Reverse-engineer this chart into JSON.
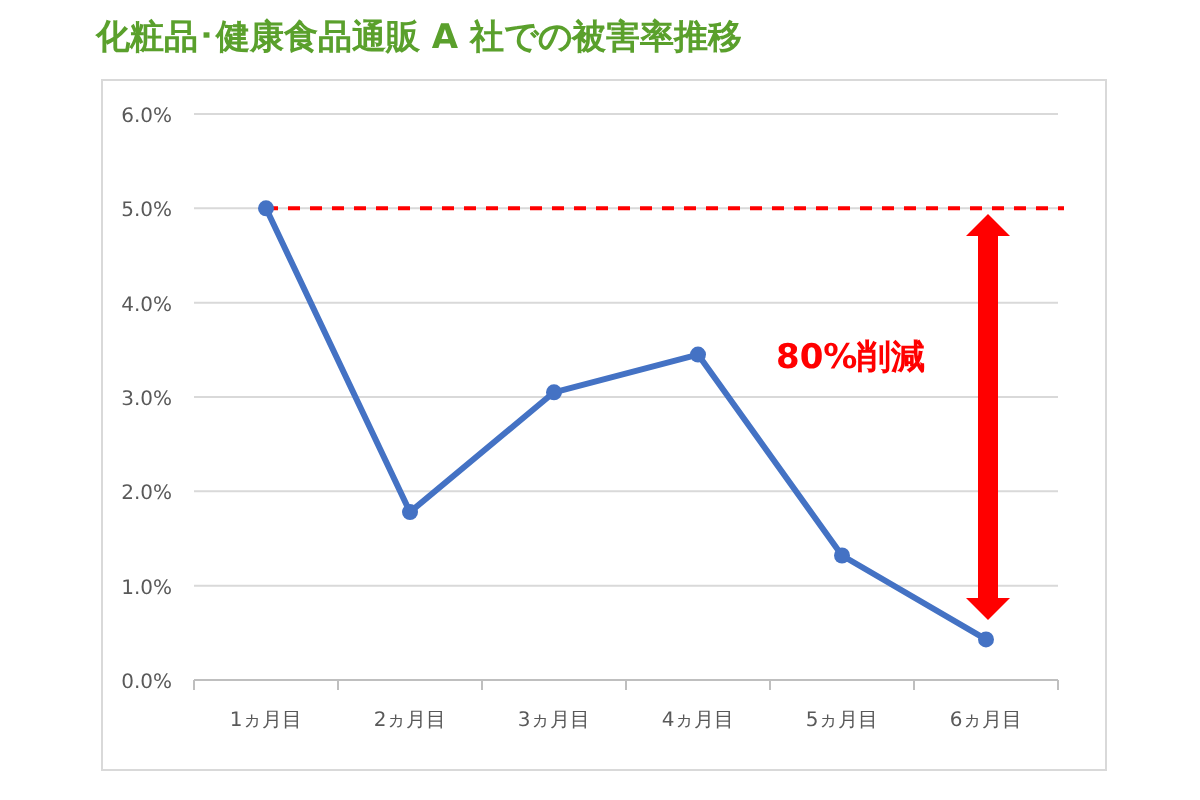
{
  "chart_data": {
    "type": "line",
    "title": "化粧品･健康食品通販 A 社での被害率推移",
    "categories": [
      "1ヵ月目",
      "2ヵ月目",
      "3ヵ月目",
      "4ヵ月目",
      "5ヵ月目",
      "6ヵ月目"
    ],
    "series": [
      {
        "color": "#4472c4",
        "values": [
          5.0,
          1.78,
          3.05,
          3.45,
          1.32,
          0.43
        ]
      }
    ],
    "ylim": [
      0,
      6
    ],
    "yticks": [
      {
        "value": 0,
        "label": "0.0%"
      },
      {
        "value": 1,
        "label": "1.0%"
      },
      {
        "value": 2,
        "label": "2.0%"
      },
      {
        "value": 3,
        "label": "3.0%"
      },
      {
        "value": 4,
        "label": "4.0%"
      },
      {
        "value": 5,
        "label": "5.0%"
      },
      {
        "value": 6,
        "label": "6.0%"
      }
    ],
    "grid": "y",
    "marker": "circle",
    "line_style": "solid",
    "ref_lines": [
      {
        "axis": "y",
        "value": 5.0,
        "color": "#ff0000",
        "line_style": "dashed"
      }
    ],
    "annotations": [
      "80%削減"
    ]
  }
}
